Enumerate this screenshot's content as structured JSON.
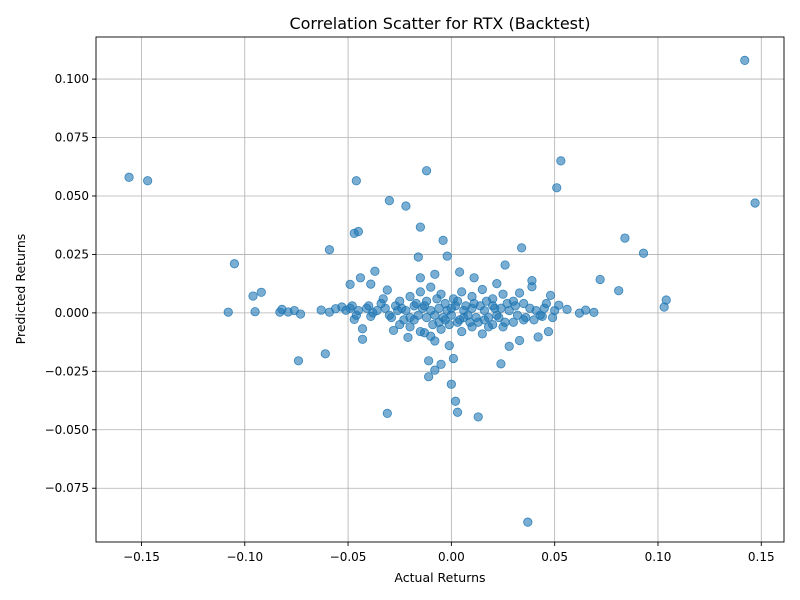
{
  "chart_data": {
    "type": "scatter",
    "title": "Correlation Scatter for RTX (Backtest)",
    "xlabel": "Actual Returns",
    "ylabel": "Predicted Returns",
    "xlim": [
      -0.172,
      0.161
    ],
    "ylim": [
      -0.098,
      0.118
    ],
    "grid": true,
    "xticks": [
      -0.15,
      -0.1,
      -0.05,
      0.0,
      0.05,
      0.1,
      0.15
    ],
    "xtick_labels": [
      "−0.15",
      "−0.10",
      "−0.05",
      "0.00",
      "0.05",
      "0.10",
      "0.15"
    ],
    "yticks": [
      -0.075,
      -0.05,
      -0.025,
      0.0,
      0.025,
      0.05,
      0.075,
      0.1
    ],
    "ytick_labels": [
      "−0.075",
      "−0.050",
      "−0.025",
      "0.000",
      "0.025",
      "0.050",
      "0.075",
      "0.100"
    ],
    "color": "#1f77b4",
    "points": [
      [
        0.142,
        0.108
      ],
      [
        0.147,
        0.047
      ],
      [
        0.053,
        0.065
      ],
      [
        0.051,
        0.0535
      ],
      [
        0.084,
        0.032
      ],
      [
        0.093,
        0.0255
      ],
      [
        0.034,
        0.0278
      ],
      [
        0.072,
        0.0143
      ],
      [
        0.081,
        0.0095
      ],
      [
        0.104,
        0.0055
      ],
      [
        0.103,
        0.0025
      ],
      [
        0.069,
        0.0002
      ],
      [
        0.065,
        0.0012
      ],
      [
        0.062,
        -0.0001
      ],
      [
        0.056,
        0.0015
      ],
      [
        -0.156,
        0.058
      ],
      [
        -0.147,
        0.0565
      ],
      [
        -0.105,
        0.021
      ],
      [
        -0.096,
        0.0072
      ],
      [
        -0.092,
        0.0088
      ],
      [
        -0.108,
        0.0003
      ],
      [
        -0.095,
        0.0005
      ],
      [
        -0.083,
        0.0003
      ],
      [
        -0.082,
        0.0015
      ],
      [
        -0.079,
        0.0004
      ],
      [
        -0.076,
        0.001
      ],
      [
        -0.073,
        -0.0005
      ],
      [
        -0.074,
        -0.0205
      ],
      [
        -0.061,
        -0.0175
      ],
      [
        -0.059,
        0.027
      ],
      [
        -0.063,
        0.0012
      ],
      [
        -0.059,
        0.0003
      ],
      [
        -0.056,
        0.0018
      ],
      [
        -0.053,
        0.0025
      ],
      [
        -0.051,
        0.0011
      ],
      [
        -0.046,
        0.0565
      ],
      [
        -0.047,
        0.034
      ],
      [
        -0.045,
        0.0348
      ],
      [
        -0.03,
        0.048
      ],
      [
        -0.022,
        0.0457
      ],
      [
        -0.012,
        0.0608
      ],
      [
        -0.015,
        0.0367
      ],
      [
        -0.004,
        0.031
      ],
      [
        -0.002,
        0.0243
      ],
      [
        -0.016,
        0.0239
      ],
      [
        -0.037,
        0.0178
      ],
      [
        -0.044,
        0.015
      ],
      [
        -0.049,
        0.0122
      ],
      [
        -0.039,
        0.0123
      ],
      [
        -0.031,
        0.0098
      ],
      [
        -0.047,
        -0.0028
      ],
      [
        -0.043,
        -0.0068
      ],
      [
        -0.043,
        -0.0113
      ],
      [
        -0.031,
        -0.043
      ],
      [
        -0.011,
        -0.0205
      ],
      [
        -0.005,
        -0.022
      ],
      [
        -0.008,
        -0.0245
      ],
      [
        -0.011,
        -0.0273
      ],
      [
        0.0,
        -0.0305
      ],
      [
        0.002,
        -0.0378
      ],
      [
        0.003,
        -0.0425
      ],
      [
        0.013,
        -0.0445
      ],
      [
        0.037,
        -0.0895
      ],
      [
        0.024,
        -0.0218
      ],
      [
        0.001,
        -0.0195
      ],
      [
        -0.001,
        -0.014
      ],
      [
        0.028,
        -0.0143
      ],
      [
        0.033,
        -0.0118
      ],
      [
        0.042,
        -0.0103
      ],
      [
        0.047,
        -0.008
      ],
      [
        0.026,
        0.0205
      ],
      [
        0.039,
        0.0138
      ],
      [
        0.039,
        0.0112
      ],
      [
        0.048,
        0.0075
      ],
      [
        0.052,
        0.0033
      ],
      [
        -0.013,
        -0.0085
      ],
      [
        -0.008,
        -0.012
      ],
      [
        0.018,
        -0.006
      ],
      [
        0.022,
        0.0125
      ],
      [
        0.011,
        0.015
      ],
      [
        0.004,
        0.0175
      ],
      [
        -0.008,
        0.0165
      ],
      [
        -0.015,
        0.015
      ],
      [
        0.033,
        0.0085
      ],
      [
        0.044,
        -0.0015
      ],
      [
        -0.039,
        -0.0015
      ],
      [
        -0.028,
        -0.0075
      ],
      [
        -0.021,
        -0.0105
      ],
      [
        -0.024,
        0.002
      ],
      [
        -0.018,
        -0.003
      ],
      [
        -0.012,
        0.005
      ],
      [
        -0.006,
        -0.004
      ],
      [
        0.0,
        0.002
      ],
      [
        0.006,
        -0.002
      ],
      [
        0.011,
        0.004
      ],
      [
        0.016,
        -0.003
      ],
      [
        0.021,
        0.002
      ],
      [
        0.026,
        -0.004
      ],
      [
        0.031,
        0.003
      ],
      [
        0.036,
        -0.002
      ],
      [
        -0.034,
        0.004
      ],
      [
        -0.029,
        -0.002
      ],
      [
        -0.036,
        0.001
      ],
      [
        -0.041,
        0.002
      ],
      [
        0.041,
        0.001
      ],
      [
        -0.01,
        0.001
      ],
      [
        -0.008,
        -0.001
      ],
      [
        -0.006,
        0.002
      ],
      [
        -0.004,
        -0.002
      ],
      [
        -0.002,
        0.001
      ],
      [
        0.0,
        -0.001
      ],
      [
        0.002,
        0.003
      ],
      [
        0.004,
        -0.003
      ],
      [
        0.006,
        0.001
      ],
      [
        0.008,
        -0.001
      ],
      [
        0.01,
        0.002
      ],
      [
        0.012,
        -0.002
      ],
      [
        -0.012,
        -0.002
      ],
      [
        -0.014,
        0.002
      ],
      [
        -0.016,
        -0.001
      ],
      [
        -0.018,
        0.003
      ],
      [
        -0.02,
        -0.002
      ],
      [
        -0.022,
        0.001
      ],
      [
        0.014,
        0.003
      ],
      [
        0.016,
        0.001
      ],
      [
        0.018,
        -0.002
      ],
      [
        0.02,
        0.003
      ],
      [
        0.022,
        -0.001
      ],
      [
        0.024,
        0.002
      ],
      [
        0.028,
        0.001
      ],
      [
        -0.026,
        0.001
      ],
      [
        -0.03,
        -0.001
      ],
      [
        -0.032,
        0.002
      ],
      [
        -0.025,
        0.005
      ],
      [
        -0.02,
        0.007
      ],
      [
        -0.015,
        0.009
      ],
      [
        -0.01,
        0.011
      ],
      [
        -0.005,
        0.008
      ],
      [
        0.005,
        0.009
      ],
      [
        0.01,
        0.007
      ],
      [
        0.015,
        0.01
      ],
      [
        0.02,
        0.006
      ],
      [
        0.025,
        0.008
      ],
      [
        0.03,
        0.005
      ],
      [
        0.035,
        0.004
      ],
      [
        -0.025,
        -0.005
      ],
      [
        -0.02,
        -0.006
      ],
      [
        -0.015,
        -0.008
      ],
      [
        -0.01,
        -0.01
      ],
      [
        -0.005,
        -0.007
      ],
      [
        0.005,
        -0.008
      ],
      [
        0.01,
        -0.006
      ],
      [
        0.015,
        -0.009
      ],
      [
        0.02,
        -0.005
      ],
      [
        0.025,
        -0.006
      ],
      [
        0.03,
        -0.004
      ],
      [
        0.035,
        -0.003
      ],
      [
        -0.003,
        0.004
      ],
      [
        0.003,
        0.005
      ],
      [
        0.007,
        0.003
      ],
      [
        -0.007,
        0.006
      ],
      [
        -0.001,
        -0.005
      ],
      [
        0.001,
        0.006
      ],
      [
        0.009,
        -0.004
      ],
      [
        -0.009,
        -0.005
      ],
      [
        0.045,
        0.002
      ],
      [
        0.043,
        -0.001
      ],
      [
        -0.045,
        0.001
      ],
      [
        -0.048,
        0.003
      ],
      [
        0.05,
        0.001
      ],
      [
        -0.027,
        0.003
      ],
      [
        -0.023,
        -0.003
      ],
      [
        0.027,
        0.004
      ],
      [
        0.023,
        -0.002
      ],
      [
        -0.017,
        0.004
      ],
      [
        0.017,
        0.005
      ],
      [
        -0.013,
        0.003
      ],
      [
        0.013,
        -0.004
      ],
      [
        -0.003,
        -0.003
      ],
      [
        0.003,
        -0.004
      ],
      [
        0.038,
        0.002
      ],
      [
        -0.038,
        0.0
      ],
      [
        0.032,
        -0.001
      ],
      [
        -0.033,
        0.006
      ],
      [
        0.04,
        -0.003
      ],
      [
        -0.04,
        0.003
      ],
      [
        0.046,
        0.004
      ],
      [
        -0.046,
        -0.001
      ],
      [
        0.049,
        -0.002
      ],
      [
        -0.049,
        0.002
      ]
    ]
  }
}
